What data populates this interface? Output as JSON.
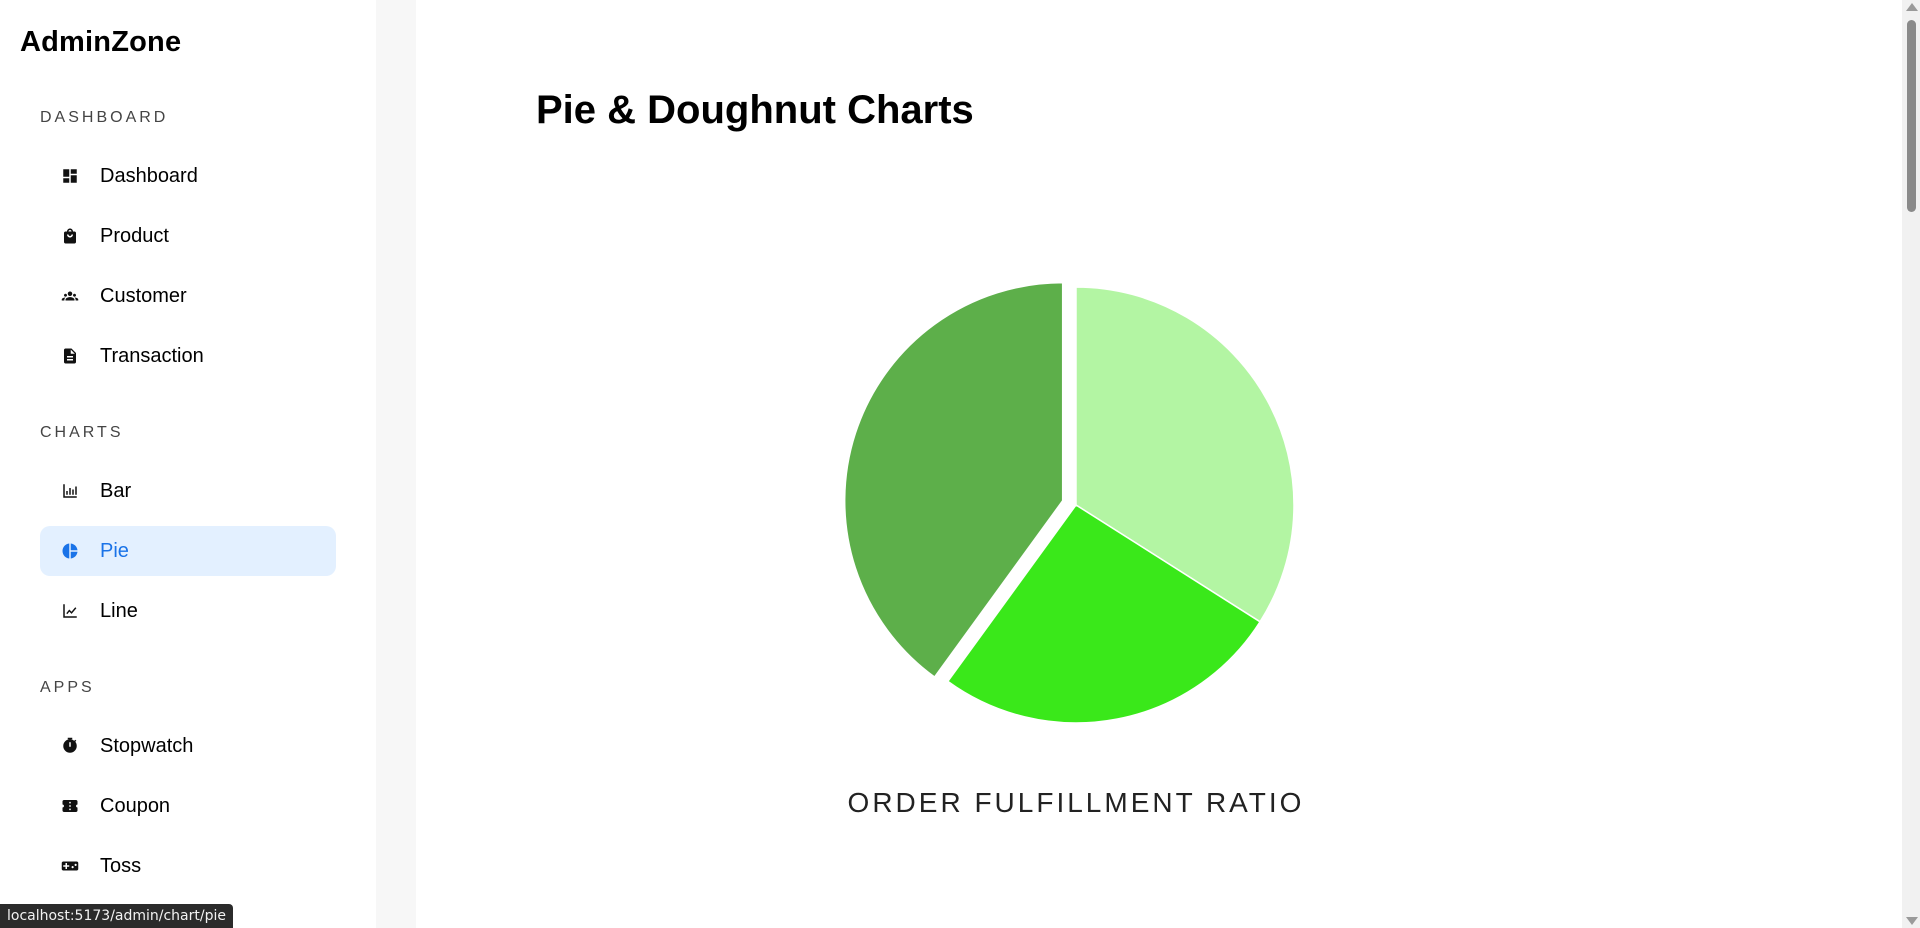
{
  "brand": "AdminZone",
  "sidebar": {
    "sections": [
      {
        "label": "DASHBOARD",
        "items": [
          {
            "label": "Dashboard",
            "icon": "dashboard-icon",
            "active": false
          },
          {
            "label": "Product",
            "icon": "shopping-bag-icon",
            "active": false
          },
          {
            "label": "Customer",
            "icon": "people-icon",
            "active": false
          },
          {
            "label": "Transaction",
            "icon": "document-icon",
            "active": false
          }
        ]
      },
      {
        "label": "CHARTS",
        "items": [
          {
            "label": "Bar",
            "icon": "bar-chart-icon",
            "active": false
          },
          {
            "label": "Pie",
            "icon": "pie-chart-icon",
            "active": true
          },
          {
            "label": "Line",
            "icon": "line-chart-icon",
            "active": false
          }
        ]
      },
      {
        "label": "APPS",
        "items": [
          {
            "label": "Stopwatch",
            "icon": "stopwatch-icon",
            "active": false
          },
          {
            "label": "Coupon",
            "icon": "ticket-icon",
            "active": false
          },
          {
            "label": "Toss",
            "icon": "gamepad-icon",
            "active": false
          }
        ]
      }
    ]
  },
  "main": {
    "title": "Pie & Doughnut Charts"
  },
  "chart_data": {
    "type": "pie",
    "title": "ORDER FULFILLMENT RATIO",
    "slices": [
      {
        "value": 34,
        "color": "#b3f5a3",
        "offset": false
      },
      {
        "value": 26,
        "color": "#3ae81a",
        "offset": false
      },
      {
        "value": 40,
        "color": "#5daf4a",
        "offset": true
      }
    ],
    "legend": "none"
  },
  "status_bar": "localhost:5173/admin/chart/pie",
  "colors": {
    "active_bg": "#e3f0ff",
    "active_text": "#1a73e8"
  }
}
